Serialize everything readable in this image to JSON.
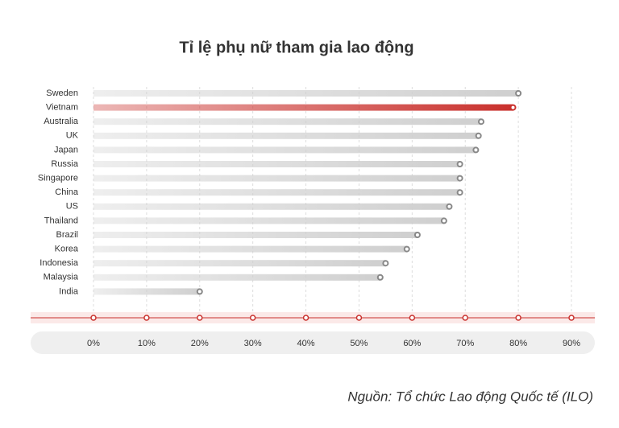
{
  "chart_data": {
    "type": "bar",
    "orientation": "horizontal",
    "title": "Tỉ lệ phụ nữ tham gia lao động",
    "source": "Nguồn: Tổ chức Lao động Quốc tế (ILO)",
    "categories": [
      "Sweden",
      "Vietnam",
      "Australia",
      "UK",
      "Japan",
      "Russia",
      "Singapore",
      "China",
      "US",
      "Thailand",
      "Brazil",
      "Korea",
      "Indonesia",
      "Malaysia",
      "India"
    ],
    "values": [
      80,
      79,
      73,
      72.5,
      72,
      69,
      69,
      69,
      67,
      66,
      61,
      59,
      55,
      54,
      20
    ],
    "colors": [
      "#cfcfcf",
      "#c9302c",
      "#cfcfcf",
      "#cfcfcf",
      "#cfcfcf",
      "#cfcfcf",
      "#cfcfcf",
      "#cfcfcf",
      "#cfcfcf",
      "#cfcfcf",
      "#cfcfcf",
      "#cfcfcf",
      "#cfcfcf",
      "#cfcfcf",
      "#cfcfcf"
    ],
    "xlim": [
      0,
      90
    ],
    "xticks": [
      {
        "value": 0,
        "label": "0%"
      },
      {
        "value": 10,
        "label": "10%"
      },
      {
        "value": 20,
        "label": "20%"
      },
      {
        "value": 30,
        "label": "30%"
      },
      {
        "value": 40,
        "label": "40%"
      },
      {
        "value": 50,
        "label": "50%"
      },
      {
        "value": 60,
        "label": "60%"
      },
      {
        "value": 70,
        "label": "70%"
      },
      {
        "value": 80,
        "label": "80%"
      },
      {
        "value": 90,
        "label": "90%"
      }
    ],
    "grid": true
  }
}
